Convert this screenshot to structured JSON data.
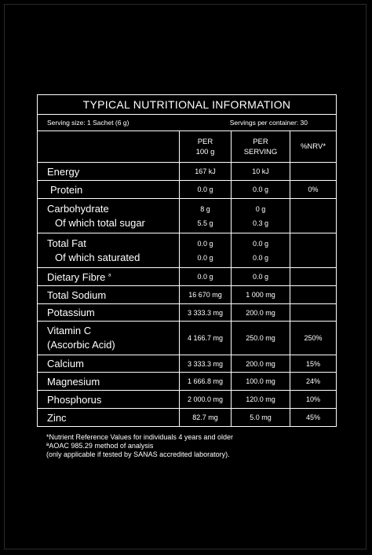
{
  "title": "TYPICAL NUTRITIONAL INFORMATION",
  "serving_size": "Serving size: 1 Sachet (6 g)",
  "servings_per_container": "Servings per container: 30",
  "headers": {
    "per100_line1": "PER",
    "per100_line2": "100 g",
    "perserv_line1": "PER",
    "perserv_line2": "SERVING",
    "nrv": "%NRV*"
  },
  "rows": {
    "energy": {
      "name": "Energy",
      "per100": "167 kJ",
      "perserv": "10 kJ",
      "nrv": ""
    },
    "protein": {
      "name": "Protein",
      "per100": "0.0 g",
      "perserv": "0.0 g",
      "nrv": "0%"
    },
    "carb": {
      "name": "Carbohydrate",
      "sub": "Of which total sugar",
      "per100": "8 g",
      "per100_sub": "5.5 g",
      "perserv": "0 g",
      "perserv_sub": "0.3 g",
      "nrv": ""
    },
    "fat": {
      "name": "Total Fat",
      "sub": "Of which saturated",
      "per100": "0.0 g",
      "per100_sub": "0.0 g",
      "perserv": "0.0 g",
      "perserv_sub": "0.0 g",
      "nrv": ""
    },
    "fibre": {
      "name": "Dietary Fibre",
      "mark": "a",
      "per100": "0.0 g",
      "perserv": "0.0 g",
      "nrv": ""
    },
    "sodium": {
      "name": "Total Sodium",
      "per100": "16 670 mg",
      "perserv": "1 000 mg",
      "nrv": ""
    },
    "potassium": {
      "name": "Potassium",
      "per100": "3 333.3 mg",
      "perserv": "200.0 mg",
      "nrv": ""
    },
    "vitc": {
      "name": "Vitamin C",
      "sub": "(Ascorbic Acid)",
      "per100": "4 166.7 mg",
      "perserv": "250.0 mg",
      "nrv": "250%"
    },
    "calcium": {
      "name": "Calcium",
      "per100": "3 333.3 mg",
      "perserv": "200.0 mg",
      "nrv": "15%"
    },
    "magnesium": {
      "name": "Magnesium",
      "per100": "1 666.8 mg",
      "perserv": "100.0 mg",
      "nrv": "24%"
    },
    "phosphorus": {
      "name": "Phosphorus",
      "per100": "2 000.0 mg",
      "perserv": "120.0 mg",
      "nrv": "10%"
    },
    "zinc": {
      "name": "Zinc",
      "per100": "82.7 mg",
      "perserv": "5.0 mg",
      "nrv": "45%"
    }
  },
  "notes": {
    "line1": "*Nutrient Reference Values for individuals 4 years and older",
    "line2": "ªAOAC 985.29 method of analysis",
    "line3": "(only applicable if tested by SANAS accredited laboratory)."
  }
}
